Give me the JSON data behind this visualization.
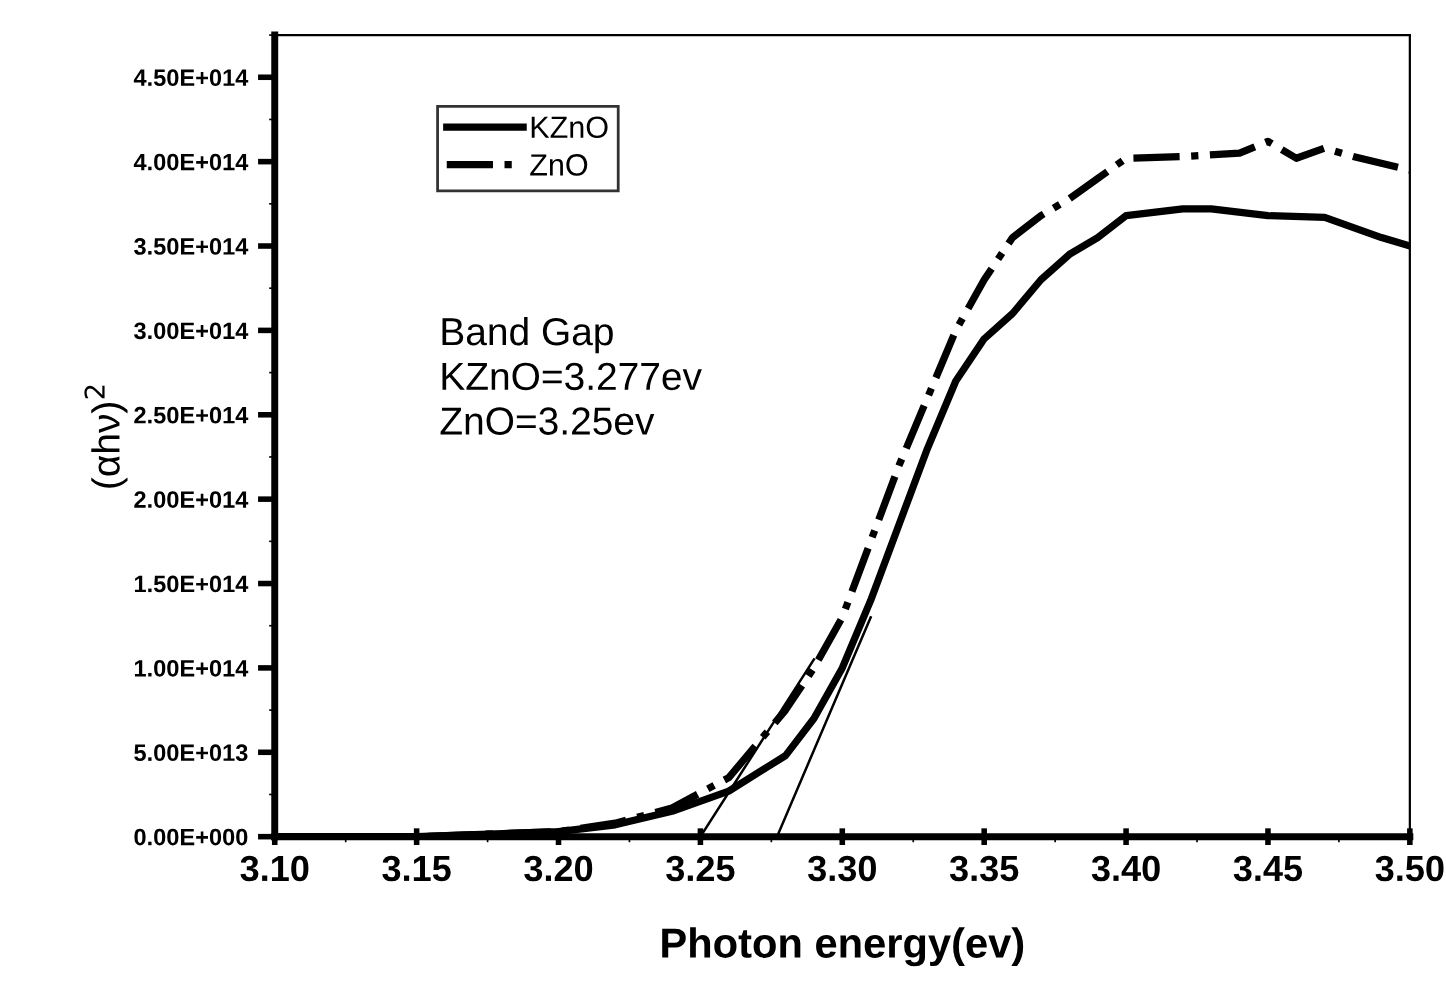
{
  "chart_data": {
    "type": "line",
    "xlabel": "Photon energy(ev)",
    "ylabel": "(αhν)$^{2}$",
    "xlim": [
      3.1,
      3.5
    ],
    "xticks": [
      {
        "value": 3.1,
        "label": "3.10"
      },
      {
        "value": 3.15,
        "label": "3.15"
      },
      {
        "value": 3.2,
        "label": "3.20"
      },
      {
        "value": 3.25,
        "label": "3.25"
      },
      {
        "value": 3.3,
        "label": "3.30"
      },
      {
        "value": 3.35,
        "label": "3.35"
      },
      {
        "value": 3.4,
        "label": "3.40"
      },
      {
        "value": 3.45,
        "label": "3.45"
      },
      {
        "value": 3.5,
        "label": "3.50"
      }
    ],
    "ylim": [
      0,
      475000000000000.0
    ],
    "yticks": [
      {
        "value": 0,
        "label": "0.00E+000"
      },
      {
        "value": 50000000000000.0,
        "label": "5.00E+013"
      },
      {
        "value": 100000000000000.0,
        "label": "1.00E+014"
      },
      {
        "value": 150000000000000.0,
        "label": "1.50E+014"
      },
      {
        "value": 200000000000000.0,
        "label": "2.00E+014"
      },
      {
        "value": 250000000000000.0,
        "label": "2.50E+014"
      },
      {
        "value": 300000000000000.0,
        "label": "3.00E+014"
      },
      {
        "value": 350000000000000.0,
        "label": "3.50E+014"
      },
      {
        "value": 400000000000000.0,
        "label": "4.00E+014"
      },
      {
        "value": 450000000000000.0,
        "label": "4.50E+014"
      }
    ],
    "grid": false,
    "legend": "top left",
    "annotations": [
      "Band Gap\nKZnO=3.277ev\nZnO=3.25ev"
    ],
    "series": [
      {
        "name": "KZnO",
        "color": "#000000",
        "line_style": "solid",
        "x": [
          3.1,
          3.15,
          3.2,
          3.22,
          3.24,
          3.26,
          3.28,
          3.29,
          3.3,
          3.31,
          3.32,
          3.33,
          3.34,
          3.35,
          3.36,
          3.37,
          3.38,
          3.39,
          3.4,
          3.42,
          3.43,
          3.45,
          3.47,
          3.49,
          3.5
        ],
        "values": [
          0,
          0,
          3000000000000.0,
          7000000000000.0,
          15000000000000.0,
          27000000000000.0,
          48000000000000.0,
          70000000000000.0,
          100000000000000.0,
          140000000000000.0,
          185000000000000.0,
          230000000000000.0,
          270000000000000.0,
          295000000000000.0,
          310000000000000.0,
          330000000000000.0,
          345000000000000.0,
          355000000000000.0,
          368000000000000.0,
          372000000000000.0,
          372000000000000.0,
          368000000000000.0,
          367000000000000.0,
          355000000000000.0,
          350000000000000.0
        ]
      },
      {
        "name": "ZnO",
        "color": "#000000",
        "line_style": "dashdot",
        "x": [
          3.1,
          3.15,
          3.2,
          3.22,
          3.24,
          3.26,
          3.28,
          3.29,
          3.3,
          3.31,
          3.32,
          3.33,
          3.34,
          3.35,
          3.36,
          3.37,
          3.38,
          3.39,
          3.4,
          3.42,
          3.44,
          3.45,
          3.46,
          3.47,
          3.48,
          3.5
        ],
        "values": [
          0,
          0,
          3000000000000.0,
          8000000000000.0,
          17000000000000.0,
          35000000000000.0,
          75000000000000.0,
          100000000000000.0,
          130000000000000.0,
          175000000000000.0,
          220000000000000.0,
          260000000000000.0,
          300000000000000.0,
          330000000000000.0,
          355000000000000.0,
          368000000000000.0,
          378000000000000.0,
          390000000000000.0,
          402000000000000.0,
          403000000000000.0,
          405000000000000.0,
          412000000000000.0,
          402000000000000.0,
          408000000000000.0,
          403000000000000.0,
          395000000000000.0
        ]
      },
      {
        "color": "#000000",
        "line_style": "solid",
        "x": [
          3.277,
          3.31
        ],
        "values": [
          0,
          130000000000000.0
        ]
      },
      {
        "color": "#000000",
        "line_style": "solid",
        "x": [
          3.25,
          3.29
        ],
        "values": [
          0,
          105000000000000.0
        ]
      }
    ]
  }
}
